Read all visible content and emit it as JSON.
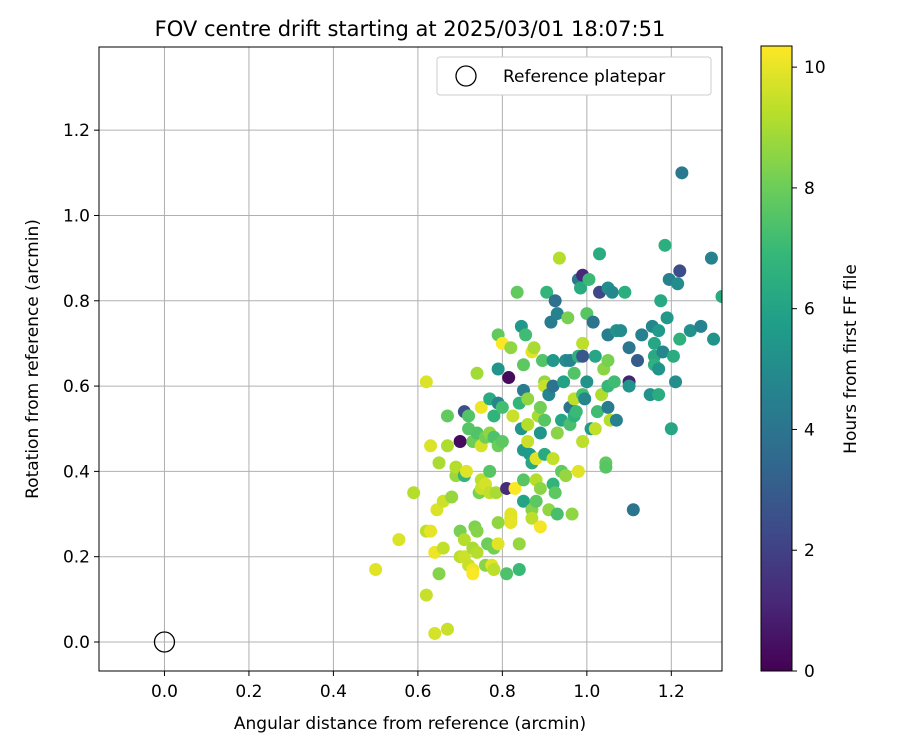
{
  "chart_data": {
    "type": "scatter",
    "title": "FOV centre drift starting at 2025/03/01 18:07:51",
    "xlabel": "Angular distance from reference (arcmin)",
    "ylabel": "Rotation from reference (arcmin)",
    "colorbar_label": "Hours from first FF file",
    "xlim": [
      -0.155,
      1.32
    ],
    "ylim": [
      -0.068,
      1.395
    ],
    "clim": [
      0,
      10.35
    ],
    "xticks": [
      0.0,
      0.2,
      0.4,
      0.6,
      0.8,
      1.0,
      1.2
    ],
    "xtick_labels": [
      "0.0",
      "0.2",
      "0.4",
      "0.6",
      "0.8",
      "1.0",
      "1.2"
    ],
    "yticks": [
      0.0,
      0.2,
      0.4,
      0.6,
      0.8,
      1.0,
      1.2
    ],
    "ytick_labels": [
      "0.0",
      "0.2",
      "0.4",
      "0.6",
      "0.8",
      "1.0",
      "1.2"
    ],
    "cticks": [
      0,
      2,
      4,
      6,
      8,
      10
    ],
    "ctick_labels": [
      "0",
      "2",
      "4",
      "6",
      "8",
      "10"
    ],
    "colormap": "viridis",
    "grid": true,
    "legend": {
      "placement": "top-right",
      "entries": [
        "Reference platepar"
      ]
    },
    "reference_point": {
      "x": 0.0,
      "y": 0.0,
      "label": "Reference platepar"
    },
    "points": [
      [
        0.5,
        0.17,
        9.9
      ],
      [
        0.555,
        0.24,
        9.8
      ],
      [
        0.59,
        0.35,
        9.2
      ],
      [
        0.62,
        0.61,
        9.8
      ],
      [
        0.62,
        0.26,
        9.3
      ],
      [
        0.62,
        0.11,
        9.5
      ],
      [
        0.63,
        0.26,
        10.0
      ],
      [
        0.63,
        0.46,
        9.8
      ],
      [
        0.64,
        0.21,
        10.1
      ],
      [
        0.64,
        0.02,
        9.7
      ],
      [
        0.645,
        0.31,
        9.8
      ],
      [
        0.65,
        0.42,
        9.0
      ],
      [
        0.65,
        0.16,
        8.4
      ],
      [
        0.66,
        0.22,
        9.4
      ],
      [
        0.66,
        0.33,
        9.6
      ],
      [
        0.67,
        0.46,
        9.1
      ],
      [
        0.67,
        0.53,
        7.8
      ],
      [
        0.67,
        0.03,
        9.5
      ],
      [
        0.68,
        0.34,
        8.7
      ],
      [
        0.69,
        0.39,
        8.8
      ],
      [
        0.69,
        0.41,
        9.2
      ],
      [
        0.7,
        0.47,
        0.3
      ],
      [
        0.7,
        0.26,
        8.2
      ],
      [
        0.7,
        0.2,
        9.3
      ],
      [
        0.71,
        0.39,
        6.8
      ],
      [
        0.71,
        0.54,
        2.5
      ],
      [
        0.71,
        0.24,
        9.2
      ],
      [
        0.71,
        0.2,
        9.6
      ],
      [
        0.715,
        0.4,
        9.9
      ],
      [
        0.72,
        0.53,
        7.5
      ],
      [
        0.72,
        0.5,
        7.6
      ],
      [
        0.72,
        0.18,
        9.5
      ],
      [
        0.73,
        0.47,
        8.0
      ],
      [
        0.73,
        0.22,
        9.0
      ],
      [
        0.73,
        0.17,
        10.1
      ],
      [
        0.73,
        0.16,
        10.3
      ],
      [
        0.735,
        0.27,
        8.3
      ],
      [
        0.74,
        0.49,
        7.5
      ],
      [
        0.74,
        0.63,
        8.9
      ],
      [
        0.74,
        0.26,
        8.4
      ],
      [
        0.74,
        0.21,
        9.2
      ],
      [
        0.745,
        0.35,
        8.2
      ],
      [
        0.75,
        0.55,
        10.1
      ],
      [
        0.75,
        0.38,
        9.3
      ],
      [
        0.75,
        0.36,
        9.5
      ],
      [
        0.75,
        0.46,
        9.7
      ],
      [
        0.76,
        0.48,
        8.1
      ],
      [
        0.76,
        0.37,
        9.7
      ],
      [
        0.76,
        0.18,
        8.5
      ],
      [
        0.765,
        0.23,
        8.0
      ],
      [
        0.77,
        0.57,
        6.3
      ],
      [
        0.77,
        0.49,
        8.6
      ],
      [
        0.77,
        0.35,
        9.4
      ],
      [
        0.77,
        0.4,
        7.6
      ],
      [
        0.775,
        0.18,
        9.9
      ],
      [
        0.78,
        0.53,
        6.7
      ],
      [
        0.78,
        0.48,
        7.4
      ],
      [
        0.78,
        0.22,
        8.1
      ],
      [
        0.78,
        0.17,
        9.3
      ],
      [
        0.785,
        0.35,
        9.0
      ],
      [
        0.79,
        0.64,
        5.4
      ],
      [
        0.79,
        0.56,
        4.8
      ],
      [
        0.79,
        0.72,
        7.8
      ],
      [
        0.79,
        0.46,
        8.0
      ],
      [
        0.79,
        0.28,
        8.6
      ],
      [
        0.79,
        0.23,
        9.9
      ],
      [
        0.8,
        0.7,
        10.3
      ],
      [
        0.8,
        0.55,
        7.2
      ],
      [
        0.8,
        0.47,
        7.7
      ],
      [
        0.81,
        0.36,
        1.3
      ],
      [
        0.81,
        0.16,
        7.4
      ],
      [
        0.815,
        0.62,
        0.3
      ],
      [
        0.82,
        0.69,
        8.6
      ],
      [
        0.82,
        0.29,
        9.6
      ],
      [
        0.82,
        0.3,
        9.9
      ],
      [
        0.82,
        0.28,
        10.0
      ],
      [
        0.825,
        0.53,
        9.5
      ],
      [
        0.83,
        0.36,
        10.3
      ],
      [
        0.835,
        0.82,
        7.8
      ],
      [
        0.84,
        0.56,
        6.8
      ],
      [
        0.84,
        0.23,
        8.7
      ],
      [
        0.84,
        0.17,
        7.0
      ],
      [
        0.845,
        0.74,
        5.5
      ],
      [
        0.845,
        0.5,
        5.4
      ],
      [
        0.85,
        0.59,
        4.3
      ],
      [
        0.85,
        0.45,
        5.5
      ],
      [
        0.85,
        0.38,
        7.6
      ],
      [
        0.85,
        0.33,
        6.0
      ],
      [
        0.85,
        0.65,
        7.7
      ],
      [
        0.855,
        0.72,
        7.1
      ],
      [
        0.86,
        0.57,
        8.6
      ],
      [
        0.86,
        0.51,
        9.2
      ],
      [
        0.86,
        0.47,
        9.5
      ],
      [
        0.865,
        0.44,
        5.6
      ],
      [
        0.87,
        0.68,
        9.9
      ],
      [
        0.87,
        0.42,
        6.2
      ],
      [
        0.87,
        0.31,
        8.4
      ],
      [
        0.87,
        0.29,
        9.3
      ],
      [
        0.875,
        0.69,
        9.0
      ],
      [
        0.88,
        0.43,
        9.9
      ],
      [
        0.88,
        0.38,
        9.2
      ],
      [
        0.88,
        0.33,
        7.7
      ],
      [
        0.885,
        0.53,
        9.0
      ],
      [
        0.89,
        0.49,
        5.4
      ],
      [
        0.89,
        0.36,
        8.5
      ],
      [
        0.89,
        0.27,
        10.2
      ],
      [
        0.89,
        0.55,
        8.1
      ],
      [
        0.895,
        0.66,
        7.5
      ],
      [
        0.9,
        0.61,
        8.7
      ],
      [
        0.9,
        0.6,
        9.5
      ],
      [
        0.9,
        0.52,
        7.6
      ],
      [
        0.9,
        0.44,
        6.3
      ],
      [
        0.905,
        0.82,
        6.8
      ],
      [
        0.91,
        0.58,
        4.7
      ],
      [
        0.91,
        0.31,
        8.6
      ],
      [
        0.915,
        0.75,
        4.3
      ],
      [
        0.92,
        0.66,
        5.5
      ],
      [
        0.92,
        0.6,
        3.9
      ],
      [
        0.92,
        0.43,
        9.4
      ],
      [
        0.92,
        0.37,
        6.7
      ],
      [
        0.925,
        0.8,
        3.8
      ],
      [
        0.925,
        0.35,
        7.7
      ],
      [
        0.93,
        0.77,
        4.6
      ],
      [
        0.93,
        0.49,
        8.5
      ],
      [
        0.93,
        0.3,
        7.3
      ],
      [
        0.935,
        0.9,
        9.2
      ],
      [
        0.94,
        0.52,
        6.1
      ],
      [
        0.94,
        0.4,
        7.8
      ],
      [
        0.945,
        0.61,
        5.9
      ],
      [
        0.95,
        0.66,
        5.0
      ],
      [
        0.95,
        0.39,
        8.7
      ],
      [
        0.955,
        0.76,
        8.2
      ],
      [
        0.96,
        0.66,
        4.7
      ],
      [
        0.96,
        0.55,
        3.9
      ],
      [
        0.96,
        0.51,
        7.3
      ],
      [
        0.965,
        0.3,
        8.6
      ],
      [
        0.97,
        0.63,
        7.5
      ],
      [
        0.97,
        0.57,
        9.3
      ],
      [
        0.97,
        0.53,
        6.6
      ],
      [
        0.975,
        0.54,
        7.0
      ],
      [
        0.98,
        0.85,
        4.1
      ],
      [
        0.98,
        0.67,
        6.6
      ],
      [
        0.98,
        0.4,
        9.9
      ],
      [
        0.985,
        0.83,
        6.3
      ],
      [
        0.99,
        0.86,
        1.2
      ],
      [
        0.99,
        0.7,
        9.3
      ],
      [
        0.99,
        0.67,
        2.8
      ],
      [
        0.99,
        0.58,
        7.2
      ],
      [
        0.99,
        0.47,
        9.3
      ],
      [
        0.995,
        0.57,
        4.8
      ],
      [
        1.0,
        0.77,
        7.6
      ],
      [
        1.0,
        0.61,
        5.3
      ],
      [
        1.005,
        0.85,
        7.0
      ],
      [
        1.01,
        0.5,
        5.5
      ],
      [
        1.015,
        0.75,
        4.0
      ],
      [
        1.02,
        0.67,
        6.1
      ],
      [
        1.02,
        0.5,
        9.4
      ],
      [
        1.025,
        0.54,
        7.1
      ],
      [
        1.03,
        0.82,
        2.2
      ],
      [
        1.03,
        0.91,
        6.4
      ],
      [
        1.035,
        0.58,
        9.1
      ],
      [
        1.04,
        0.64,
        8.5
      ],
      [
        1.045,
        0.42,
        7.8
      ],
      [
        1.045,
        0.41,
        7.6
      ],
      [
        1.05,
        0.83,
        5.1
      ],
      [
        1.05,
        0.72,
        4.4
      ],
      [
        1.05,
        0.66,
        8.2
      ],
      [
        1.05,
        0.6,
        6.9
      ],
      [
        1.05,
        0.55,
        4.3
      ],
      [
        1.055,
        0.52,
        9.2
      ],
      [
        1.06,
        0.82,
        4.9
      ],
      [
        1.065,
        0.61,
        7.1
      ],
      [
        1.07,
        0.73,
        5.3
      ],
      [
        1.07,
        0.52,
        4.6
      ],
      [
        1.08,
        0.73,
        5.0
      ],
      [
        1.09,
        0.82,
        6.5
      ],
      [
        1.1,
        0.61,
        1.0
      ],
      [
        1.1,
        0.6,
        5.4
      ],
      [
        1.1,
        0.69,
        4.1
      ],
      [
        1.11,
        0.31,
        4.0
      ],
      [
        1.12,
        0.66,
        3.0
      ],
      [
        1.13,
        0.72,
        4.5
      ],
      [
        1.15,
        0.58,
        5.3
      ],
      [
        1.155,
        0.74,
        4.8
      ],
      [
        1.16,
        0.7,
        6.1
      ],
      [
        1.16,
        0.67,
        6.2
      ],
      [
        1.16,
        0.65,
        6.6
      ],
      [
        1.17,
        0.58,
        6.4
      ],
      [
        1.17,
        0.64,
        5.4
      ],
      [
        1.17,
        0.73,
        5.6
      ],
      [
        1.175,
        0.8,
        6.2
      ],
      [
        1.18,
        0.68,
        4.8
      ],
      [
        1.185,
        0.93,
        6.5
      ],
      [
        1.19,
        0.76,
        5.5
      ],
      [
        1.195,
        0.85,
        4.5
      ],
      [
        1.2,
        0.5,
        6.1
      ],
      [
        1.205,
        0.67,
        6.4
      ],
      [
        1.21,
        0.61,
        5.1
      ],
      [
        1.215,
        0.84,
        5.0
      ],
      [
        1.22,
        0.87,
        2.4
      ],
      [
        1.22,
        0.71,
        6.6
      ],
      [
        1.225,
        1.1,
        4.2
      ],
      [
        1.245,
        0.73,
        5.2
      ],
      [
        1.27,
        0.74,
        4.6
      ],
      [
        1.295,
        0.9,
        4.6
      ],
      [
        1.3,
        0.71,
        5.3
      ],
      [
        1.32,
        0.81,
        6.3
      ]
    ]
  }
}
